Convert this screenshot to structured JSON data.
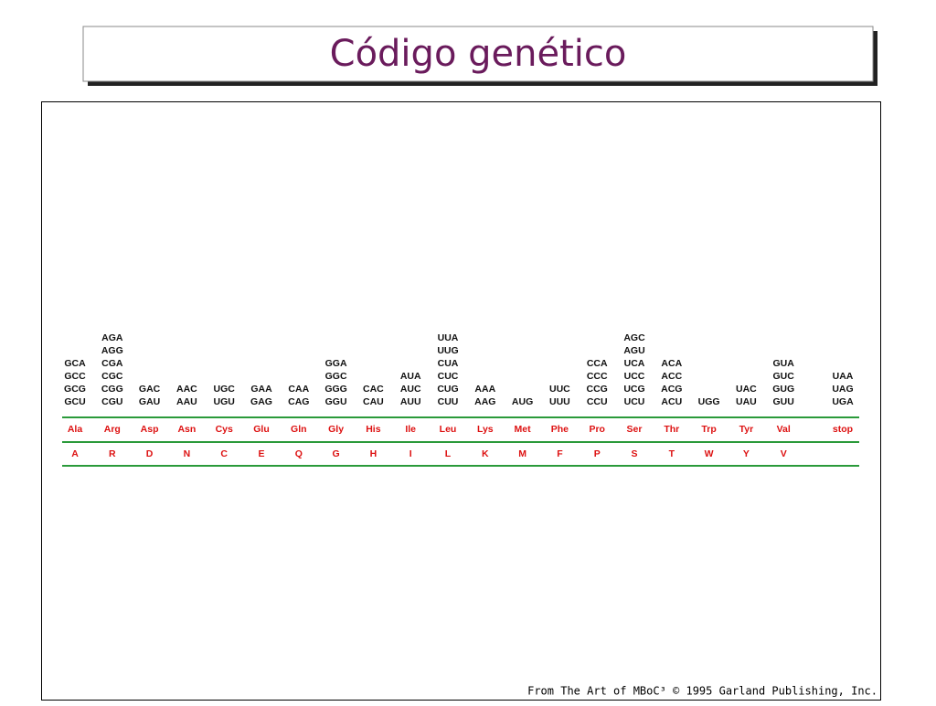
{
  "title": "Código genético",
  "table": {
    "columns": [
      {
        "codons": [
          "GCA",
          "GCC",
          "GCG",
          "GCU"
        ],
        "amino_acid": "Ala",
        "letter": "A"
      },
      {
        "codons": [
          "AGA",
          "AGG",
          "CGA",
          "CGC",
          "CGG",
          "CGU"
        ],
        "amino_acid": "Arg",
        "letter": "R"
      },
      {
        "codons": [
          "GAC",
          "GAU"
        ],
        "amino_acid": "Asp",
        "letter": "D"
      },
      {
        "codons": [
          "AAC",
          "AAU"
        ],
        "amino_acid": "Asn",
        "letter": "N"
      },
      {
        "codons": [
          "UGC",
          "UGU"
        ],
        "amino_acid": "Cys",
        "letter": "C"
      },
      {
        "codons": [
          "GAA",
          "GAG"
        ],
        "amino_acid": "Glu",
        "letter": "E"
      },
      {
        "codons": [
          "CAA",
          "CAG"
        ],
        "amino_acid": "Gln",
        "letter": "Q"
      },
      {
        "codons": [
          "GGA",
          "GGC",
          "GGG",
          "GGU"
        ],
        "amino_acid": "Gly",
        "letter": "G"
      },
      {
        "codons": [
          "CAC",
          "CAU"
        ],
        "amino_acid": "His",
        "letter": "H"
      },
      {
        "codons": [
          "AUA",
          "AUC",
          "AUU"
        ],
        "amino_acid": "Ile",
        "letter": "I"
      },
      {
        "codons": [
          "UUA",
          "UUG",
          "CUA",
          "CUC",
          "CUG",
          "CUU"
        ],
        "amino_acid": "Leu",
        "letter": "L"
      },
      {
        "codons": [
          "AAA",
          "AAG"
        ],
        "amino_acid": "Lys",
        "letter": "K"
      },
      {
        "codons": [
          "AUG"
        ],
        "amino_acid": "Met",
        "letter": "M"
      },
      {
        "codons": [
          "UUC",
          "UUU"
        ],
        "amino_acid": "Phe",
        "letter": "F"
      },
      {
        "codons": [
          "CCA",
          "CCC",
          "CCG",
          "CCU"
        ],
        "amino_acid": "Pro",
        "letter": "P"
      },
      {
        "codons": [
          "AGC",
          "AGU",
          "UCA",
          "UCC",
          "UCG",
          "UCU"
        ],
        "amino_acid": "Ser",
        "letter": "S"
      },
      {
        "codons": [
          "ACA",
          "ACC",
          "ACG",
          "ACU"
        ],
        "amino_acid": "Thr",
        "letter": "T"
      },
      {
        "codons": [
          "UGG"
        ],
        "amino_acid": "Trp",
        "letter": "W"
      },
      {
        "codons": [
          "UAC",
          "UAU"
        ],
        "amino_acid": "Tyr",
        "letter": "Y"
      },
      {
        "codons": [
          "GUA",
          "GUC",
          "GUG",
          "GUU"
        ],
        "amino_acid": "Val",
        "letter": "V"
      },
      {
        "codons": [
          "UAA",
          "UAG",
          "UGA"
        ],
        "amino_acid": "stop"
      }
    ]
  },
  "credit": "From The Art of MBoC³ © 1995 Garland Publishing, Inc."
}
